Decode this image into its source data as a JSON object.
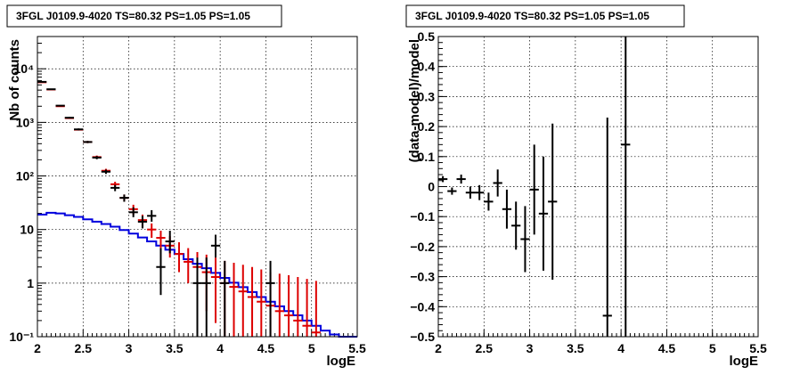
{
  "chart_data": [
    {
      "type": "scatter",
      "title": "3FGL J0109.9-4020 TS=80.32 PS=1.05 PS=1.05",
      "xlabel": "logE",
      "ylabel": "Nb of counts",
      "xlim": [
        2,
        5.5
      ],
      "ylim": [
        0.1,
        40000
      ],
      "yscale": "log",
      "grid": true,
      "xticks": [
        "2",
        "2.5",
        "3",
        "3.5",
        "4",
        "4.5",
        "5",
        "5.5"
      ],
      "yticks": [
        {
          "v": 0.1,
          "label": "10⁻¹"
        },
        {
          "v": 1,
          "label": "1"
        },
        {
          "v": 10,
          "label": "10"
        },
        {
          "v": 100,
          "label": "10²"
        },
        {
          "v": 1000,
          "label": "10³"
        },
        {
          "v": 10000,
          "label": "10⁴"
        }
      ],
      "series": [
        {
          "role": "data",
          "color": "#000000",
          "points": [
            {
              "x": 2.05,
              "y": 5700,
              "lo": 5630,
              "hi": 5780
            },
            {
              "x": 2.15,
              "y": 4150,
              "lo": 4090,
              "hi": 4210
            },
            {
              "x": 2.25,
              "y": 2050,
              "lo": 2000,
              "hi": 2100
            },
            {
              "x": 2.35,
              "y": 1220,
              "lo": 1180,
              "hi": 1260
            },
            {
              "x": 2.45,
              "y": 740,
              "lo": 710,
              "hi": 770
            },
            {
              "x": 2.55,
              "y": 430,
              "lo": 410,
              "hi": 450
            },
            {
              "x": 2.65,
              "y": 220,
              "lo": 205,
              "hi": 235
            },
            {
              "x": 2.75,
              "y": 120,
              "lo": 109,
              "hi": 131
            },
            {
              "x": 2.85,
              "y": 60,
              "lo": 52,
              "hi": 68
            },
            {
              "x": 2.95,
              "y": 39,
              "lo": 33,
              "hi": 45
            },
            {
              "x": 3.05,
              "y": 21,
              "lo": 17,
              "hi": 26
            },
            {
              "x": 3.15,
              "y": 14,
              "lo": 10.5,
              "hi": 18
            },
            {
              "x": 3.25,
              "y": 18,
              "lo": 14,
              "hi": 23
            },
            {
              "x": 3.35,
              "y": 2,
              "lo": 0.6,
              "hi": 4.5
            },
            {
              "x": 3.45,
              "y": 6,
              "lo": 3.6,
              "hi": 9.5
            },
            {
              "x": 3.75,
              "y": 1,
              "lo": 0.1,
              "hi": 3
            },
            {
              "x": 3.85,
              "y": 1,
              "lo": 0.1,
              "hi": 3
            },
            {
              "x": 3.95,
              "y": 5,
              "lo": 3,
              "hi": 8
            },
            {
              "x": 4.05,
              "y": 1,
              "lo": 0.1,
              "hi": 2.6
            },
            {
              "x": 4.55,
              "y": 1,
              "lo": 0.1,
              "hi": 2.6
            }
          ]
        },
        {
          "role": "model-total",
          "color": "#dd0000",
          "points": [
            {
              "x": 2.05,
              "y": 5600,
              "lo": 5530,
              "hi": 5670
            },
            {
              "x": 2.15,
              "y": 4100,
              "lo": 4040,
              "hi": 4160
            },
            {
              "x": 2.25,
              "y": 2000,
              "lo": 1960,
              "hi": 2040
            },
            {
              "x": 2.35,
              "y": 1200,
              "lo": 1170,
              "hi": 1230
            },
            {
              "x": 2.45,
              "y": 730,
              "lo": 705,
              "hi": 755
            },
            {
              "x": 2.55,
              "y": 430,
              "lo": 410,
              "hi": 450
            },
            {
              "x": 2.65,
              "y": 225,
              "lo": 210,
              "hi": 240
            },
            {
              "x": 2.75,
              "y": 125,
              "lo": 114,
              "hi": 136
            },
            {
              "x": 2.85,
              "y": 70,
              "lo": 62,
              "hi": 78
            },
            {
              "x": 2.95,
              "y": 39,
              "lo": 33,
              "hi": 45
            },
            {
              "x": 3.05,
              "y": 24,
              "lo": 19,
              "hi": 29
            },
            {
              "x": 3.15,
              "y": 15,
              "lo": 11,
              "hi": 19
            },
            {
              "x": 3.25,
              "y": 10,
              "lo": 7,
              "hi": 13
            },
            {
              "x": 3.35,
              "y": 7,
              "lo": 4.5,
              "hi": 9.5
            },
            {
              "x": 3.45,
              "y": 5,
              "lo": 3,
              "hi": 7.5
            },
            {
              "x": 3.55,
              "y": 3.5,
              "lo": 1.6,
              "hi": 5.8
            },
            {
              "x": 3.65,
              "y": 2.5,
              "lo": 1.0,
              "hi": 4.5
            },
            {
              "x": 3.75,
              "y": 2.0,
              "lo": 0.5,
              "hi": 3.8
            },
            {
              "x": 3.85,
              "y": 1.6,
              "lo": 0.3,
              "hi": 3.4
            },
            {
              "x": 3.95,
              "y": 1.3,
              "lo": 0.18,
              "hi": 3.0
            },
            {
              "x": 4.05,
              "y": 1.0,
              "lo": 0.1,
              "hi": 2.6
            },
            {
              "x": 4.15,
              "y": 0.85,
              "lo": 0.1,
              "hi": 2.4
            },
            {
              "x": 4.25,
              "y": 0.7,
              "lo": 0.1,
              "hi": 2.2
            },
            {
              "x": 4.35,
              "y": 0.55,
              "lo": 0.1,
              "hi": 2.0
            },
            {
              "x": 4.45,
              "y": 0.45,
              "lo": 0.1,
              "hi": 1.8
            },
            {
              "x": 4.55,
              "y": 0.38,
              "lo": 0.1,
              "hi": 1.6
            },
            {
              "x": 4.65,
              "y": 0.3,
              "lo": 0.1,
              "hi": 1.5
            },
            {
              "x": 4.75,
              "y": 0.25,
              "lo": 0.1,
              "hi": 1.4
            },
            {
              "x": 4.85,
              "y": 0.2,
              "lo": 0.1,
              "hi": 1.3
            },
            {
              "x": 4.95,
              "y": 0.16,
              "lo": 0.1,
              "hi": 1.2
            },
            {
              "x": 5.05,
              "y": 0.12,
              "lo": 0.1,
              "hi": 1.1
            }
          ]
        },
        {
          "role": "source-model",
          "color": "#0000dd",
          "edges": [
            2.0,
            2.1,
            2.2,
            2.3,
            2.4,
            2.5,
            2.6,
            2.7,
            2.8,
            2.9,
            3.0,
            3.1,
            3.2,
            3.3,
            3.4,
            3.5,
            3.6,
            3.7,
            3.8,
            3.9,
            4.0,
            4.1,
            4.2,
            4.3,
            4.4,
            4.5,
            4.6,
            4.7,
            4.8,
            4.9,
            5.0,
            5.1,
            5.2,
            5.3,
            5.4,
            5.5
          ],
          "values": [
            19,
            20.5,
            20,
            18.5,
            17.2,
            15.5,
            14,
            12.7,
            11.3,
            9.8,
            8.4,
            7.1,
            6,
            5,
            4.2,
            3.5,
            2.8,
            2.3,
            1.9,
            1.55,
            1.25,
            1.02,
            0.84,
            0.68,
            0.55,
            0.45,
            0.37,
            0.3,
            0.25,
            0.2,
            0.16,
            0.13,
            0.11,
            0.1,
            0.1
          ]
        }
      ]
    },
    {
      "type": "scatter",
      "title": "3FGL J0109.9-4020 TS=80.32 PS=1.05 PS=1.05",
      "xlabel": "logE",
      "ylabel": "(data-model)/model",
      "xlim": [
        2,
        5.5
      ],
      "ylim": [
        -0.5,
        0.5
      ],
      "grid": true,
      "xticks": [
        "2",
        "2.5",
        "3",
        "3.5",
        "4",
        "4.5",
        "5",
        "5.5"
      ],
      "yticks": [
        "−0.5",
        "−0.4",
        "−0.3",
        "−0.2",
        "−0.1",
        "0",
        "0.1",
        "0.2",
        "0.3",
        "0.4",
        "0.5"
      ],
      "series": [
        {
          "role": "residual",
          "color": "#000000",
          "points": [
            {
              "x": 2.05,
              "y": 0.025,
              "err": 0.01
            },
            {
              "x": 2.15,
              "y": -0.015,
              "err": 0.012
            },
            {
              "x": 2.25,
              "y": 0.025,
              "err": 0.015
            },
            {
              "x": 2.35,
              "y": -0.02,
              "err": 0.02
            },
            {
              "x": 2.45,
              "y": -0.02,
              "err": 0.025
            },
            {
              "x": 2.55,
              "y": -0.05,
              "err": 0.03
            },
            {
              "x": 2.65,
              "y": 0.012,
              "err": 0.045
            },
            {
              "x": 2.75,
              "y": -0.075,
              "err": 0.065
            },
            {
              "x": 2.85,
              "y": -0.13,
              "err": 0.08
            },
            {
              "x": 2.95,
              "y": -0.175,
              "err": 0.11
            },
            {
              "x": 3.05,
              "y": -0.01,
              "err": 0.15
            },
            {
              "x": 3.15,
              "y": -0.09,
              "err": 0.19
            },
            {
              "x": 3.25,
              "y": -0.05,
              "err": 0.26
            },
            {
              "x": 3.85,
              "y": -0.43,
              "err": 0.66
            },
            {
              "x": 4.05,
              "y": 0.14,
              "err": 0.7
            }
          ]
        }
      ]
    }
  ]
}
